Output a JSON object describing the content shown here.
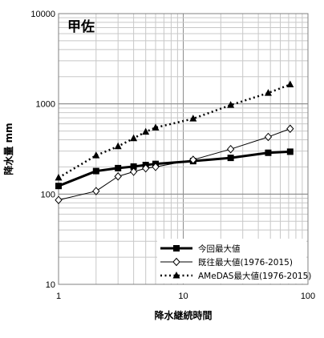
{
  "chart_data": {
    "type": "line",
    "title": "甲佐",
    "xlabel": "降水継続時間",
    "ylabel": "降水量 mm",
    "xscale": "log",
    "yscale": "log",
    "xlim": [
      1,
      100
    ],
    "ylim": [
      10,
      10000
    ],
    "x_ticks": [
      "1",
      "10",
      "100"
    ],
    "y_ticks": [
      "10",
      "100",
      "1000",
      "10000"
    ],
    "grid": true,
    "legend_position": "bottom-right",
    "series": [
      {
        "name": "今回最大値",
        "color": "#000000",
        "line": "solid-thick",
        "marker": "square",
        "x": [
          1,
          2,
          3,
          4,
          5,
          6,
          12,
          24,
          48,
          72
        ],
        "y": [
          123,
          180,
          194,
          202,
          210,
          216,
          232,
          252,
          287,
          295
        ]
      },
      {
        "name": "既往最大値(1976-2015)",
        "color": "#000000",
        "line": "solid-thin",
        "marker": "diamond-open",
        "x": [
          1,
          2,
          3,
          4,
          5,
          6,
          12,
          24,
          48,
          72
        ],
        "y": [
          86,
          108,
          157,
          177,
          193,
          200,
          240,
          315,
          430,
          530
        ]
      },
      {
        "name": "AMeDAS最大値(1976-2015)",
        "color": "#000000",
        "line": "dotted",
        "marker": "triangle",
        "x": [
          1,
          2,
          3,
          4,
          5,
          6,
          12,
          24,
          48,
          72
        ],
        "y": [
          152,
          268,
          338,
          415,
          490,
          545,
          685,
          970,
          1320,
          1640
        ]
      }
    ]
  }
}
